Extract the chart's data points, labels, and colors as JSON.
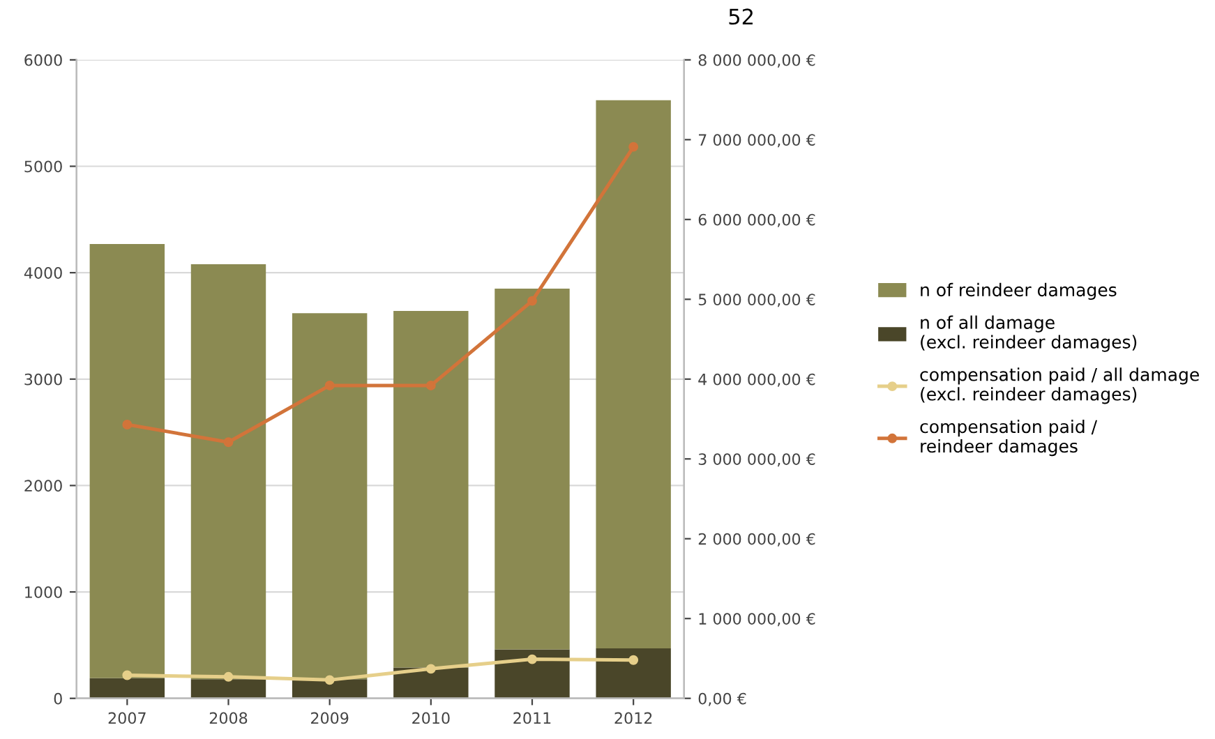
{
  "chart_data": {
    "type": "bar",
    "stacked": true,
    "categories": [
      "2007",
      "2008",
      "2009",
      "2010",
      "2011",
      "2012"
    ],
    "series": [
      {
        "name": "n of all damage\n(excl. reindeer damages)",
        "color": "#4a4629",
        "values": [
          190,
          180,
          180,
          290,
          460,
          470
        ]
      },
      {
        "name": "n of reindeer damages",
        "color": "#8b8a52",
        "values": [
          4080,
          3900,
          3440,
          3350,
          3390,
          5150
        ]
      },
      {
        "name": "compensation paid / all damage\n(excl. reindeer damages)",
        "type": "line",
        "axis": "y2",
        "color": "#e6cf8a",
        "values": [
          290000,
          270000,
          230000,
          370000,
          490000,
          480000
        ]
      },
      {
        "name": "compensation paid /\nreindeer damages",
        "type": "line",
        "axis": "y2",
        "color": "#d2743a",
        "values": [
          3430000,
          3210000,
          3920000,
          3920000,
          4980000,
          6910000
        ]
      }
    ],
    "ylim": [
      0,
      6000
    ],
    "yticks": [
      0,
      1000,
      2000,
      3000,
      4000,
      5000,
      6000
    ],
    "y2lim": [
      0,
      8000000
    ],
    "y2ticks": [
      {
        "value": 0,
        "label": "0,00 €"
      },
      {
        "value": 1000000,
        "label": "1 000 000,00 €"
      },
      {
        "value": 2000000,
        "label": "2 000 000,00 €"
      },
      {
        "value": 3000000,
        "label": "3 000 000,00 €"
      },
      {
        "value": 4000000,
        "label": "4 000 000,00 €"
      },
      {
        "value": 5000000,
        "label": "5 000 000,00 €"
      },
      {
        "value": 6000000,
        "label": "6 000 000,00 €"
      },
      {
        "value": 7000000,
        "label": "7 000 000,00 €"
      },
      {
        "value": 8000000,
        "label": "8 000 000,00 €"
      }
    ],
    "grid": "y",
    "legend": "right",
    "marker": "circle",
    "line_style": "solid",
    "annotations": [
      "52"
    ]
  }
}
